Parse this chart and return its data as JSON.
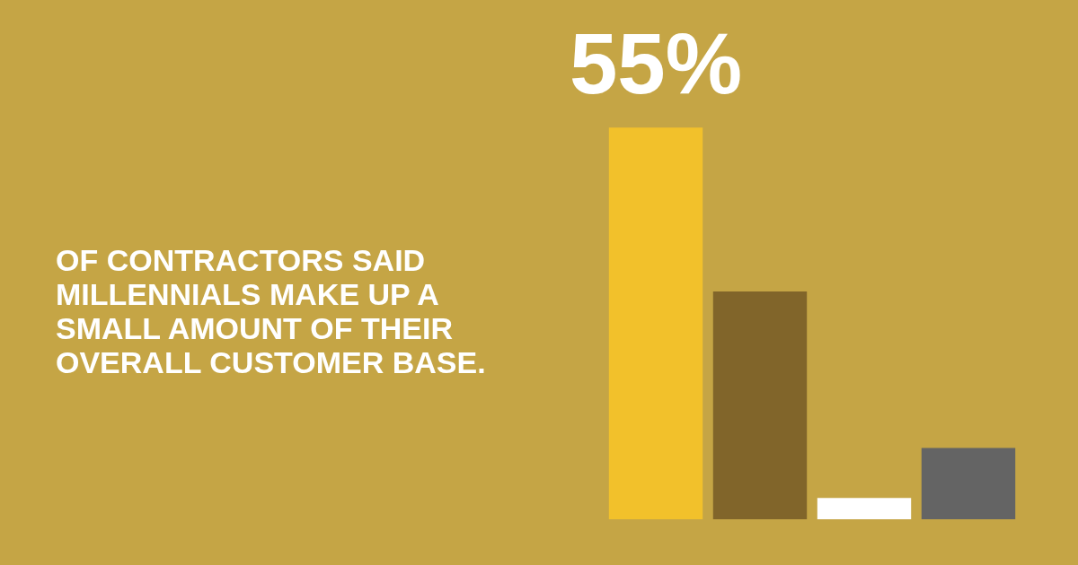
{
  "chart_data": {
    "type": "bar",
    "categories": [
      null,
      null,
      null,
      null
    ],
    "values": [
      55,
      32,
      3,
      10
    ],
    "colors": [
      "#f2c12b",
      "#81652a",
      "#ffffff",
      "#646464"
    ],
    "value_labels": [
      "55%",
      null,
      null,
      null
    ],
    "annotations": [
      "OF CONTRACTORS SAID MILLENNIALS MAKE UP A SMALL AMOUNT OF THEIR OVERALL CUSTOMER BASE."
    ]
  }
}
